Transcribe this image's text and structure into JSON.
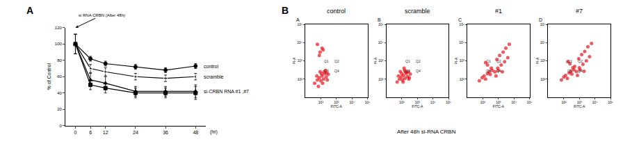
{
  "chart_data": [
    {
      "type": "line",
      "label": "A",
      "annotations": [
        "si RNA CRBN (After 48h)"
      ],
      "x_label": "(hr)",
      "y_label": "% of Control",
      "x": [
        0,
        6,
        12,
        24,
        36,
        48
      ],
      "xlim": [
        -4,
        52
      ],
      "xticks": [
        0,
        6,
        12,
        24,
        36,
        48
      ],
      "ylim": [
        0,
        120
      ],
      "yticks": [
        0,
        20,
        40,
        60,
        80,
        100,
        120
      ],
      "series": [
        {
          "name": "control",
          "color": "#000000",
          "marker": "circle",
          "line_style": "solid",
          "values": [
            100,
            82,
            76,
            72,
            68,
            73
          ],
          "errors": [
            12,
            3,
            3,
            3,
            3,
            3
          ]
        },
        {
          "name": "scramble",
          "color": "#000000",
          "marker": "circle-open",
          "line_style": "solid",
          "values": [
            100,
            70,
            66,
            60,
            58,
            60
          ],
          "errors": [
            12,
            5,
            5,
            4,
            4,
            4
          ]
        },
        {
          "name": "si-CRBN RNA #1 ,#7",
          "color": "#000000",
          "marker": "triangle-up",
          "line_style": "solid",
          "values": [
            100,
            56,
            52,
            42,
            42,
            42
          ],
          "errors": [
            12,
            8,
            8,
            6,
            6,
            8
          ]
        },
        {
          "color": "#000000",
          "marker": "square",
          "line_style": "solid",
          "values": [
            100,
            50,
            46,
            40,
            40,
            40
          ],
          "errors": [
            12,
            6,
            6,
            6,
            6,
            8
          ]
        }
      ]
    },
    {
      "type": "scatter",
      "title": "control",
      "label": "A",
      "color": "#e8141c",
      "marker": "circle",
      "x_label": "FITC-A",
      "y_label": "PI-A",
      "log": true,
      "xlim": [
        10,
        100000
      ],
      "ylim": [
        10,
        100000
      ],
      "xticks": [
        {
          "value": 100,
          "label": "10²"
        },
        {
          "value": 1000,
          "label": "10³"
        },
        {
          "value": 10000,
          "label": "10⁴"
        },
        {
          "value": 100000,
          "label": "10⁵"
        }
      ],
      "yticks": [
        {
          "value": 100,
          "label": "10²"
        },
        {
          "value": 1000,
          "label": "10³"
        },
        {
          "value": 10000,
          "label": "10⁴"
        },
        {
          "value": 100000,
          "label": "10⁵"
        }
      ],
      "gate": {
        "x": 500,
        "y": 500
      },
      "quadrants": [
        "Q1",
        "Q2",
        "Q3",
        "Q4"
      ],
      "x": [
        40,
        60,
        80,
        100,
        120,
        150,
        180,
        220,
        260,
        300,
        90,
        130,
        70,
        200,
        110,
        160,
        55,
        240,
        80,
        140,
        60,
        90,
        120
      ],
      "values": [
        60,
        90,
        120,
        80,
        150,
        100,
        200,
        130,
        90,
        180,
        250,
        60,
        40,
        300,
        200,
        250,
        150,
        220,
        2000,
        4000,
        8000,
        3000,
        5000
      ]
    },
    {
      "type": "scatter",
      "title": "scramble",
      "label": "B",
      "color": "#e8141c",
      "marker": "circle",
      "x_label": "FITC-A",
      "y_label": "PI-A",
      "log": true,
      "xlim": [
        10,
        100000
      ],
      "ylim": [
        10,
        100000
      ],
      "xticks": [
        {
          "value": 100,
          "label": "10²"
        },
        {
          "value": 1000,
          "label": "10³"
        },
        {
          "value": 10000,
          "label": "10⁴"
        },
        {
          "value": 100000,
          "label": "10⁵"
        }
      ],
      "yticks": [
        {
          "value": 100,
          "label": "10²"
        },
        {
          "value": 1000,
          "label": "10³"
        },
        {
          "value": 10000,
          "label": "10⁴"
        },
        {
          "value": 100000,
          "label": "10⁵"
        }
      ],
      "gate": {
        "x": 500,
        "y": 500
      },
      "quadrants": [
        "Q1",
        "Q2",
        "Q3",
        "Q4"
      ],
      "x": [
        50,
        70,
        90,
        110,
        130,
        160,
        190,
        230,
        280,
        350,
        80,
        120,
        150,
        200,
        100,
        170,
        60,
        260,
        300,
        140
      ],
      "values": [
        70,
        100,
        130,
        90,
        160,
        110,
        210,
        140,
        100,
        190,
        260,
        70,
        300,
        230,
        200,
        260,
        150,
        250,
        120,
        400
      ]
    },
    {
      "type": "scatter",
      "title": "#1",
      "label": "C",
      "color": "#e8141c",
      "marker": "circle",
      "x_label": "FITC-A",
      "y_label": "PI-A",
      "log": true,
      "xlim": [
        10,
        100000
      ],
      "ylim": [
        10,
        100000
      ],
      "xticks": [
        {
          "value": 100,
          "label": "10²"
        },
        {
          "value": 1000,
          "label": "10³"
        },
        {
          "value": 10000,
          "label": "10⁴"
        },
        {
          "value": 100000,
          "label": "10⁵"
        }
      ],
      "yticks": [
        {
          "value": 100,
          "label": "10²"
        },
        {
          "value": 1000,
          "label": "10³"
        },
        {
          "value": 10000,
          "label": "10⁴"
        },
        {
          "value": 100000,
          "label": "10⁵"
        }
      ],
      "gate": {
        "x": 500,
        "y": 500
      },
      "quadrants": [
        "Q1",
        "Q2",
        "Q3",
        "Q4"
      ],
      "x": [
        60,
        90,
        120,
        150,
        200,
        250,
        300,
        400,
        350,
        600,
        900,
        1500,
        2500,
        4000,
        800,
        1200,
        2000,
        3000,
        700,
        1000,
        5000,
        200,
        150,
        1800
      ],
      "values": [
        80,
        120,
        150,
        100,
        200,
        250,
        180,
        300,
        400,
        250,
        400,
        600,
        900,
        1500,
        1200,
        2000,
        3000,
        5000,
        150,
        300,
        8000,
        600,
        800,
        250
      ]
    },
    {
      "type": "scatter",
      "title": "#7",
      "label": "D",
      "color": "#e8141c",
      "marker": "circle",
      "x_label": "FITC-A",
      "y_label": "PI-A",
      "log": true,
      "xlim": [
        10,
        100000
      ],
      "ylim": [
        10,
        100000
      ],
      "xticks": [
        {
          "value": 100,
          "label": "10²"
        },
        {
          "value": 1000,
          "label": "10³"
        },
        {
          "value": 10000,
          "label": "10⁴"
        },
        {
          "value": 100000,
          "label": "10⁵"
        }
      ],
      "yticks": [
        {
          "value": 100,
          "label": "10²"
        },
        {
          "value": 1000,
          "label": "10³"
        },
        {
          "value": 10000,
          "label": "10⁴"
        },
        {
          "value": 100000,
          "label": "10⁵"
        }
      ],
      "gate": {
        "x": 500,
        "y": 500
      },
      "quadrants": [
        "Q1",
        "Q2",
        "Q3",
        "Q4"
      ],
      "x": [
        70,
        100,
        130,
        170,
        220,
        280,
        330,
        450,
        380,
        650,
        1000,
        1700,
        2800,
        4500,
        900,
        1400,
        2200,
        3500,
        750,
        1100,
        6000,
        250,
        180,
        2000,
        500
      ],
      "values": [
        90,
        130,
        160,
        110,
        220,
        270,
        190,
        320,
        420,
        260,
        420,
        650,
        1000,
        1700,
        1300,
        2200,
        3300,
        6000,
        160,
        320,
        9000,
        700,
        900,
        270,
        500
      ]
    }
  ],
  "panel_B": {
    "label": "B",
    "caption": "After 48h si-RNA CRBN"
  }
}
